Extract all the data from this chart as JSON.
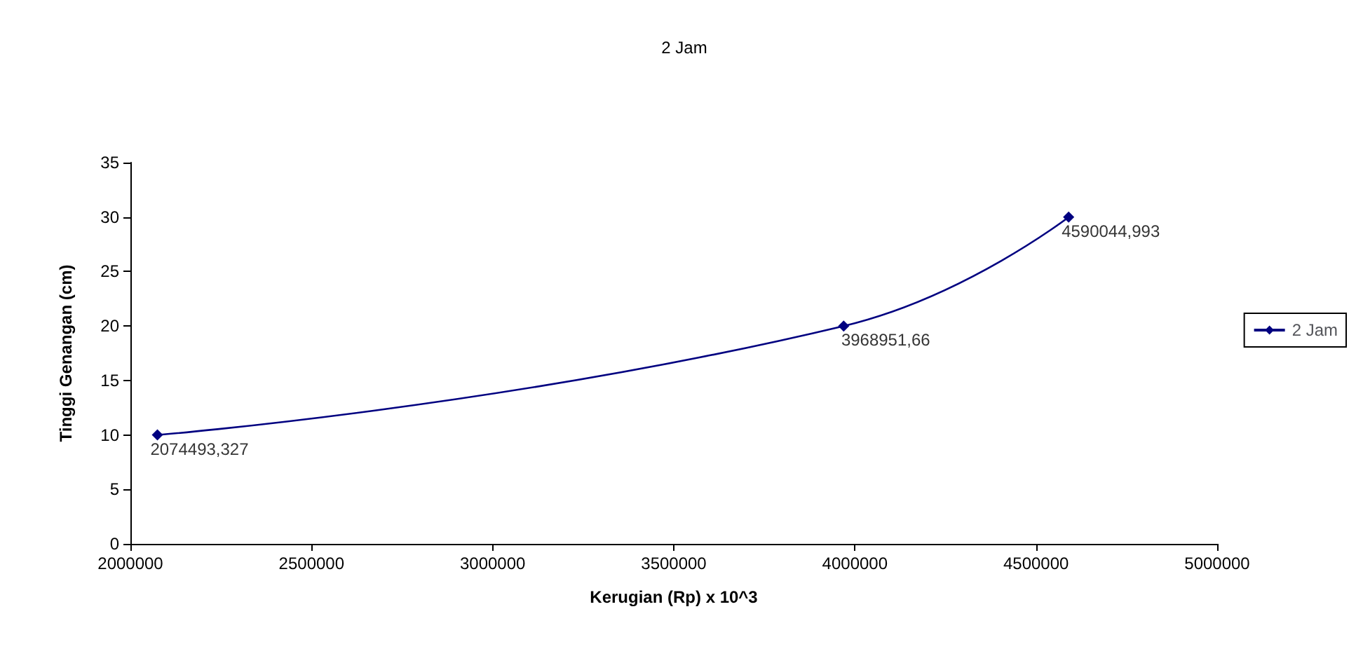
{
  "chart_data": {
    "type": "line",
    "title": "2 Jam",
    "xlabel": "Kerugian (Rp) x 10^3",
    "ylabel": "Tinggi Genangan (cm)",
    "x": [
      2074493.327,
      3968951.66,
      4590044.993
    ],
    "series": [
      {
        "name": "2 Jam",
        "color": "#000080",
        "values": [
          10,
          20,
          30
        ]
      }
    ],
    "annotations": [
      {
        "text": "2074493,327",
        "x": 2074493.327,
        "y": 10
      },
      {
        "text": "3968951,66",
        "x": 3968951.66,
        "y": 20
      },
      {
        "text": "4590044,993",
        "x": 4590044.993,
        "y": 30
      }
    ],
    "xlim": [
      2000000,
      5000000
    ],
    "xticks": [
      2000000,
      2500000,
      3000000,
      3500000,
      4000000,
      4500000,
      5000000
    ],
    "ylim": [
      0,
      35
    ],
    "yticks": [
      0,
      5,
      10,
      15,
      20,
      25,
      30,
      35
    ],
    "grid": false,
    "legend": "right",
    "marker": "diamond",
    "line_style": "solid"
  }
}
